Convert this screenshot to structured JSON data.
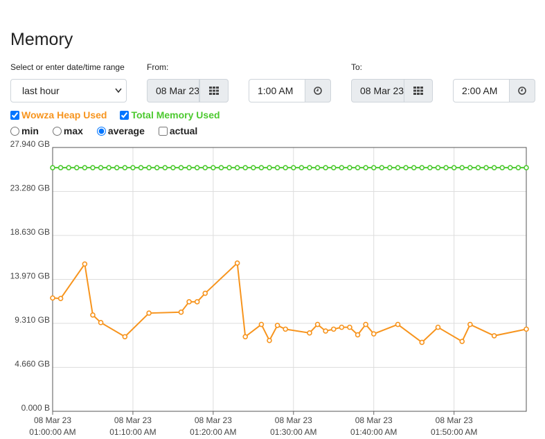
{
  "header": {
    "title": "Memory"
  },
  "range": {
    "label": "Select or enter date/time range",
    "selected": "last hour",
    "from": {
      "label": "From:",
      "date": "08 Mar 23",
      "time": "1:00 AM"
    },
    "to": {
      "label": "To:",
      "date": "08 Mar 23",
      "time": "2:00 AM"
    }
  },
  "options": {
    "aggregates": [
      {
        "label": "min",
        "checked": false
      },
      {
        "label": "max",
        "checked": false
      },
      {
        "label": "average",
        "checked": true
      }
    ],
    "actual": {
      "label": "actual",
      "checked": false
    }
  },
  "chart_data": {
    "type": "line",
    "xlim": [
      "01:00:00",
      "01:59:00"
    ],
    "xticks": [
      {
        "value": "01:00:00",
        "label": [
          "08 Mar 23",
          "01:00:00 AM"
        ]
      },
      {
        "value": "01:10:00",
        "label": [
          "08 Mar 23",
          "01:10:00 AM"
        ]
      },
      {
        "value": "01:20:00",
        "label": [
          "08 Mar 23",
          "01:20:00 AM"
        ]
      },
      {
        "value": "01:30:00",
        "label": [
          "08 Mar 23",
          "01:30:00 AM"
        ]
      },
      {
        "value": "01:40:00",
        "label": [
          "08 Mar 23",
          "01:40:00 AM"
        ]
      },
      {
        "value": "01:50:00",
        "label": [
          "08 Mar 23",
          "01:50:00 AM"
        ]
      }
    ],
    "ylim": [
      0,
      27.94
    ],
    "yticks": [
      {
        "value": 0,
        "label": "0.000 B"
      },
      {
        "value": 4.66,
        "label": "4.660 GB"
      },
      {
        "value": 9.31,
        "label": "9.310 GB"
      },
      {
        "value": 13.97,
        "label": "13.970 GB"
      },
      {
        "value": 18.63,
        "label": "18.630 GB"
      },
      {
        "value": 23.28,
        "label": "23.280 GB"
      },
      {
        "value": 27.94,
        "label": "27.940 GB"
      }
    ],
    "grid": true,
    "series": [
      {
        "name": "Wowza Heap Used",
        "color": "#f7941d",
        "visible": true,
        "x": [
          "01:00:00",
          "01:01:00",
          "01:04:00",
          "01:05:00",
          "01:06:00",
          "01:09:00",
          "01:12:00",
          "01:16:00",
          "01:17:00",
          "01:18:00",
          "01:19:00",
          "01:23:00",
          "01:24:00",
          "01:26:00",
          "01:27:00",
          "01:28:00",
          "01:29:00",
          "01:32:00",
          "01:33:00",
          "01:34:00",
          "01:35:00",
          "01:36:00",
          "01:37:00",
          "01:38:00",
          "01:39:00",
          "01:40:00",
          "01:43:00",
          "01:46:00",
          "01:48:00",
          "01:51:00",
          "01:52:00",
          "01:55:00",
          "01:59:00"
        ],
        "values": [
          12.0,
          11.95,
          15.6,
          10.2,
          9.4,
          7.9,
          10.4,
          10.5,
          11.6,
          11.6,
          12.5,
          15.7,
          7.9,
          9.2,
          7.5,
          9.1,
          8.7,
          8.3,
          9.2,
          8.5,
          8.7,
          8.9,
          8.9,
          8.1,
          9.2,
          8.2,
          9.2,
          7.3,
          8.9,
          7.4,
          9.2,
          8.0,
          8.7
        ]
      },
      {
        "name": "Total Memory Used",
        "color": "#4cc92f",
        "visible": true,
        "x": [
          "01:00:00",
          "01:01:00",
          "01:02:00",
          "01:03:00",
          "01:04:00",
          "01:05:00",
          "01:06:00",
          "01:07:00",
          "01:08:00",
          "01:09:00",
          "01:10:00",
          "01:11:00",
          "01:12:00",
          "01:13:00",
          "01:14:00",
          "01:15:00",
          "01:16:00",
          "01:17:00",
          "01:18:00",
          "01:19:00",
          "01:20:00",
          "01:21:00",
          "01:22:00",
          "01:23:00",
          "01:24:00",
          "01:25:00",
          "01:26:00",
          "01:27:00",
          "01:28:00",
          "01:29:00",
          "01:30:00",
          "01:31:00",
          "01:32:00",
          "01:33:00",
          "01:34:00",
          "01:35:00",
          "01:36:00",
          "01:37:00",
          "01:38:00",
          "01:39:00",
          "01:40:00",
          "01:41:00",
          "01:42:00",
          "01:43:00",
          "01:44:00",
          "01:45:00",
          "01:46:00",
          "01:47:00",
          "01:48:00",
          "01:49:00",
          "01:50:00",
          "01:51:00",
          "01:52:00",
          "01:53:00",
          "01:54:00",
          "01:55:00",
          "01:56:00",
          "01:57:00",
          "01:58:00",
          "01:59:00"
        ],
        "values": [
          25.8,
          25.8,
          25.8,
          25.8,
          25.8,
          25.8,
          25.8,
          25.8,
          25.8,
          25.8,
          25.8,
          25.8,
          25.8,
          25.8,
          25.8,
          25.8,
          25.8,
          25.8,
          25.8,
          25.8,
          25.8,
          25.8,
          25.8,
          25.8,
          25.8,
          25.8,
          25.8,
          25.8,
          25.8,
          25.8,
          25.8,
          25.8,
          25.8,
          25.8,
          25.8,
          25.8,
          25.8,
          25.8,
          25.8,
          25.8,
          25.8,
          25.8,
          25.8,
          25.8,
          25.8,
          25.8,
          25.8,
          25.8,
          25.8,
          25.8,
          25.8,
          25.8,
          25.8,
          25.8,
          25.8,
          25.8,
          25.8,
          25.8,
          25.8,
          25.8
        ]
      }
    ]
  }
}
